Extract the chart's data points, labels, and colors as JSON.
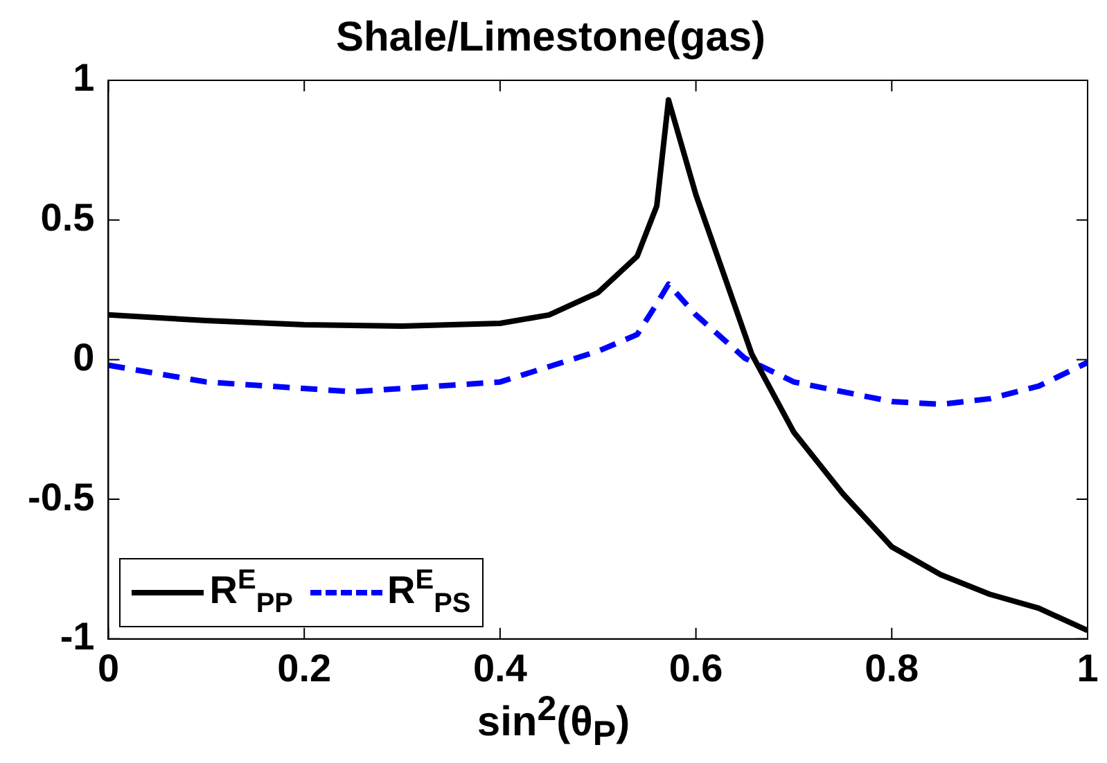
{
  "chart_data": {
    "type": "line",
    "title": "Shale/Limestone(gas)",
    "xlabel": "sin$^{2}$(θ$_{P}$)",
    "xlim": [
      0,
      1
    ],
    "xticks": [
      0,
      0.2,
      0.4,
      0.6,
      0.8,
      1
    ],
    "ylim": [
      -1,
      1
    ],
    "yticks": [
      -1,
      -0.5,
      0,
      0.5,
      1
    ],
    "grid": false,
    "legend": "bottom left",
    "marker": "none",
    "series": [
      {
        "name": "R$^{E}$$_{PP}$",
        "color": "#000000",
        "line_style": "solid",
        "x": [
          0,
          0.1,
          0.2,
          0.3,
          0.4,
          0.45,
          0.5,
          0.54,
          0.56,
          0.572,
          0.6,
          0.657,
          0.7,
          0.75,
          0.8,
          0.85,
          0.9,
          0.95,
          1
        ],
        "values": [
          0.16,
          0.14,
          0.125,
          0.12,
          0.13,
          0.16,
          0.24,
          0.37,
          0.55,
          0.93,
          0.59,
          0.02,
          -0.26,
          -0.48,
          -0.67,
          -0.77,
          -0.84,
          -0.89,
          -0.97
        ]
      },
      {
        "name": "R$^{E}$$_{PS}$",
        "color": "#0000ff",
        "line_style": "dashed",
        "x": [
          0,
          0.1,
          0.25,
          0.4,
          0.5,
          0.54,
          0.56,
          0.572,
          0.6,
          0.65,
          0.7,
          0.8,
          0.85,
          0.9,
          0.95,
          1
        ],
        "values": [
          -0.02,
          -0.08,
          -0.115,
          -0.08,
          0.03,
          0.09,
          0.2,
          0.27,
          0.16,
          0.005,
          -0.08,
          -0.15,
          -0.16,
          -0.14,
          -0.095,
          -0.01
        ]
      }
    ]
  }
}
